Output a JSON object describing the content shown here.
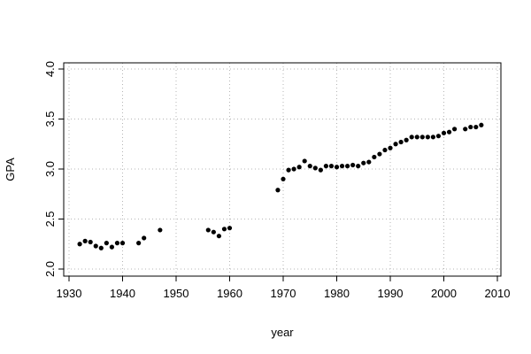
{
  "chart_data": {
    "type": "scatter",
    "title": "",
    "xlabel": "year",
    "ylabel": "GPA",
    "xlim": [
      1930,
      2010
    ],
    "ylim": [
      2.0,
      4.0
    ],
    "xticks": [
      1930,
      1940,
      1950,
      1960,
      1970,
      1980,
      1990,
      2000,
      2010
    ],
    "yticks": [
      2.0,
      2.5,
      3.0,
      3.5,
      4.0
    ],
    "xtick_labels": [
      "1930",
      "1940",
      "1950",
      "1960",
      "1970",
      "1980",
      "1990",
      "2000",
      "2010"
    ],
    "ytick_labels": [
      "2.0",
      "2.5",
      "3.0",
      "3.5",
      "4.0"
    ],
    "grid": true,
    "point_color": "#000000",
    "x": [
      1932,
      1933,
      1934,
      1935,
      1936,
      1937,
      1938,
      1939,
      1940,
      1943,
      1944,
      1947,
      1956,
      1957,
      1958,
      1959,
      1960,
      1969,
      1970,
      1971,
      1972,
      1973,
      1974,
      1975,
      1976,
      1977,
      1978,
      1979,
      1980,
      1981,
      1982,
      1983,
      1984,
      1985,
      1986,
      1987,
      1988,
      1989,
      1990,
      1991,
      1992,
      1993,
      1994,
      1995,
      1996,
      1997,
      1998,
      1999,
      2000,
      2001,
      2002,
      2004,
      2005,
      2006,
      2007
    ],
    "y": [
      2.25,
      2.28,
      2.27,
      2.23,
      2.21,
      2.26,
      2.22,
      2.26,
      2.26,
      2.26,
      2.31,
      2.39,
      2.39,
      2.37,
      2.33,
      2.4,
      2.41,
      2.79,
      2.9,
      2.99,
      3.0,
      3.02,
      3.08,
      3.03,
      3.01,
      2.99,
      3.03,
      3.03,
      3.02,
      3.03,
      3.03,
      3.04,
      3.03,
      3.06,
      3.07,
      3.12,
      3.15,
      3.19,
      3.21,
      3.25,
      3.27,
      3.29,
      3.32,
      3.32,
      3.32,
      3.32,
      3.32,
      3.33,
      3.36,
      3.37,
      3.4,
      3.4,
      3.42,
      3.42,
      3.44
    ]
  }
}
